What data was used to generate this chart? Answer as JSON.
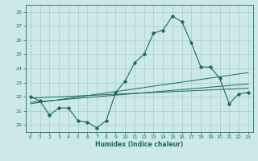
{
  "xlabel": "Humidex (Indice chaleur)",
  "ylabel": "",
  "background_color": "#cce8e8",
  "grid_color": "#aacccc",
  "line_color": "#1a6b5a",
  "xlim": [
    -0.5,
    23.5
  ],
  "ylim": [
    19.5,
    28.5
  ],
  "xticks": [
    0,
    1,
    2,
    3,
    4,
    5,
    6,
    7,
    8,
    9,
    10,
    11,
    12,
    13,
    14,
    15,
    16,
    17,
    18,
    19,
    20,
    21,
    22,
    23
  ],
  "yticks": [
    20,
    21,
    22,
    23,
    24,
    25,
    26,
    27,
    28
  ],
  "main_x": [
    0,
    1,
    2,
    3,
    4,
    5,
    6,
    7,
    8,
    9,
    10,
    11,
    12,
    13,
    14,
    15,
    16,
    17,
    18,
    19,
    20,
    21,
    22,
    23
  ],
  "main_y": [
    22.0,
    21.7,
    20.7,
    21.2,
    21.2,
    20.3,
    20.2,
    19.8,
    20.3,
    22.3,
    23.1,
    24.4,
    25.0,
    26.5,
    26.7,
    27.7,
    27.3,
    25.8,
    24.1,
    24.1,
    23.3,
    21.5,
    22.2,
    22.3
  ],
  "trend1_x": [
    0,
    23
  ],
  "trend1_y": [
    21.9,
    22.6
  ],
  "trend2_x": [
    0,
    23
  ],
  "trend2_y": [
    21.5,
    23.7
  ],
  "trend3_x": [
    0,
    23
  ],
  "trend3_y": [
    21.6,
    22.9
  ]
}
